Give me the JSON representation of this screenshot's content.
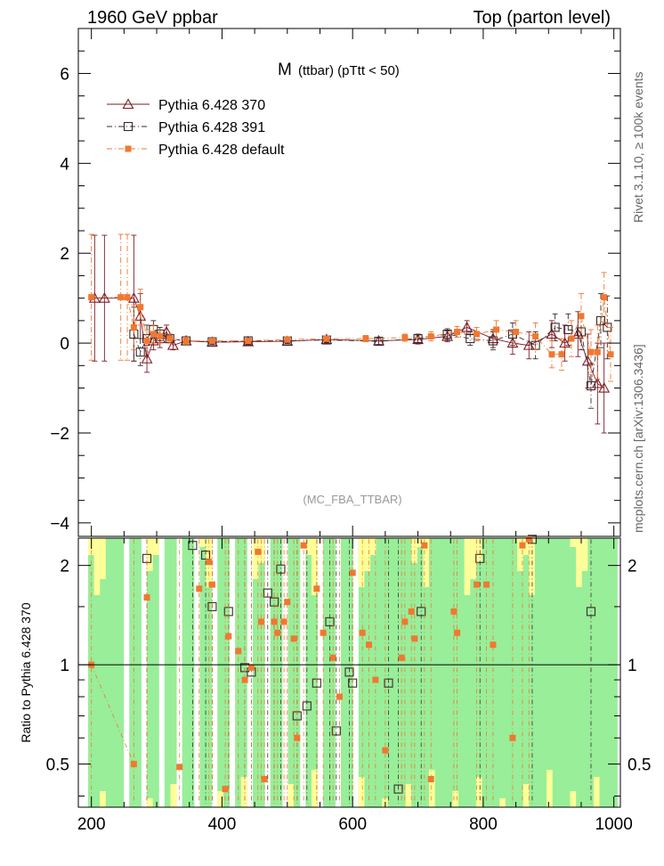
{
  "header": {
    "left": "1960 GeV ppbar",
    "right": "Top (parton level)"
  },
  "side_labels": {
    "rivet": "Rivet 3.1.10, ≥ 100k events",
    "mcplots": "mcplots.cern.ch [arXiv:1306.3436]"
  },
  "chart_data": [
    {
      "type": "line",
      "panel": "main",
      "title_main": "M",
      "title_sub": "(ttbar) (pTtt < 50)",
      "watermark": "(MC_FBA_TTBAR)",
      "xlim": [
        180,
        1010
      ],
      "ylim": [
        -4.3,
        7.0
      ],
      "yticks": [
        -4,
        -2,
        0,
        2,
        4,
        6
      ],
      "ytick_labels": [
        "−4",
        "−2",
        "0",
        "2",
        "4",
        "6"
      ],
      "legend_position": "top-left",
      "series": [
        {
          "name": "Pythia 6.428 370",
          "color": "#7f1a26",
          "marker": "open-triangle",
          "dash": "solid",
          "x": [
            205,
            220,
            265,
            275,
            285,
            295,
            305,
            315,
            325,
            345,
            385,
            440,
            500,
            560,
            640,
            700,
            745,
            775,
            815,
            845,
            870,
            905,
            925,
            945,
            960,
            975,
            985
          ],
          "y": [
            1.0,
            1.0,
            1.0,
            0.6,
            -0.35,
            0.05,
            0.1,
            0.25,
            -0.05,
            0.05,
            0.02,
            0.03,
            0.04,
            0.08,
            0.05,
            0.08,
            0.15,
            0.35,
            0.1,
            0.0,
            -0.05,
            0.2,
            0.0,
            0.2,
            -0.4,
            -0.9,
            -1.0
          ],
          "err": [
            1.4,
            1.4,
            1.4,
            0.5,
            0.3,
            0.2,
            0.2,
            0.15,
            0.1,
            0.08,
            0.05,
            0.05,
            0.05,
            0.06,
            0.08,
            0.1,
            0.12,
            0.15,
            0.2,
            0.25,
            0.3,
            0.3,
            0.4,
            0.5,
            0.6,
            0.9,
            1.0
          ]
        },
        {
          "name": "Pythia 6.428 391",
          "color": "#3a2a2a",
          "marker": "open-square",
          "dash": "dashdot",
          "x": [
            265,
            275,
            285,
            295,
            305,
            320,
            345,
            385,
            440,
            500,
            560,
            640,
            700,
            745,
            780,
            815,
            845,
            880,
            910,
            930,
            950,
            965,
            980,
            990
          ],
          "y": [
            0.2,
            -0.2,
            0.1,
            0.3,
            0.2,
            0.1,
            0.05,
            0.03,
            0.05,
            0.05,
            0.07,
            0.04,
            0.1,
            0.2,
            0.1,
            0.05,
            0.2,
            -0.05,
            0.35,
            0.3,
            0.25,
            -0.95,
            0.5,
            0.35
          ],
          "err": [
            0.6,
            0.3,
            0.3,
            0.2,
            0.15,
            0.1,
            0.08,
            0.05,
            0.05,
            0.05,
            0.06,
            0.08,
            0.1,
            0.12,
            0.15,
            0.2,
            0.25,
            0.3,
            0.3,
            0.35,
            0.4,
            0.5,
            0.6,
            0.7
          ]
        },
        {
          "name": "Pythia 6.428 default",
          "color": "#f07830",
          "marker": "filled-square",
          "dash": "dashdot",
          "x": [
            200,
            245,
            255,
            265,
            275,
            285,
            295,
            305,
            320,
            345,
            385,
            440,
            500,
            560,
            620,
            680,
            720,
            760,
            790,
            820,
            850,
            880,
            905,
            920,
            935,
            950,
            965,
            975,
            985,
            995
          ],
          "y": [
            1.02,
            1.02,
            1.02,
            0.35,
            0.8,
            0.05,
            0.2,
            0.15,
            0.1,
            0.05,
            0.05,
            0.05,
            0.08,
            0.1,
            0.1,
            0.12,
            0.15,
            0.25,
            0.2,
            0.3,
            0.25,
            0.15,
            -0.25,
            -0.25,
            0.1,
            0.6,
            -0.2,
            -0.2,
            1.02,
            -0.25
          ],
          "err": [
            1.4,
            1.4,
            1.4,
            0.5,
            0.4,
            0.25,
            0.2,
            0.15,
            0.1,
            0.08,
            0.05,
            0.05,
            0.05,
            0.06,
            0.07,
            0.08,
            0.1,
            0.12,
            0.15,
            0.2,
            0.25,
            0.3,
            0.3,
            0.35,
            0.4,
            0.5,
            0.5,
            0.6,
            0.55,
            0.6
          ]
        }
      ],
      "legend": [
        {
          "label": "Pythia 6.428 370",
          "color": "#7f1a26",
          "marker": "open-triangle"
        },
        {
          "label": "Pythia 6.428 391",
          "color": "#3a2a2a",
          "marker": "open-square"
        },
        {
          "label": "Pythia 6.428 default",
          "color": "#f07830",
          "marker": "filled-square"
        }
      ]
    },
    {
      "type": "line",
      "panel": "ratio",
      "ylabel": "Ratio to Pythia 6.428 370",
      "xlim": [
        180,
        1010
      ],
      "ylim": [
        0.37,
        2.42
      ],
      "ylog": true,
      "yticks": [
        0.5,
        1,
        2
      ],
      "ytick_labels": [
        "0.5",
        "1",
        "2"
      ],
      "xticks": [
        200,
        400,
        600,
        800,
        1000
      ],
      "xtick_labels": [
        "200",
        "400",
        "600",
        "800",
        "1000"
      ],
      "reference_line": 1,
      "band_colors": {
        "inner": "#99ee99",
        "outer": "#ffff99"
      },
      "series": [
        {
          "name": "Pythia 6.428 391",
          "color": "#3a2a2a",
          "marker": "open-square",
          "x": [
            285,
            355,
            375,
            385,
            410,
            435,
            445,
            470,
            480,
            490,
            515,
            530,
            545,
            565,
            575,
            595,
            600,
            655,
            670,
            705,
            795,
            875,
            965
          ],
          "y": [
            2.1,
            2.3,
            2.15,
            1.5,
            1.45,
            0.98,
            0.95,
            1.65,
            1.55,
            1.95,
            0.7,
            0.75,
            0.88,
            1.35,
            0.63,
            0.95,
            0.88,
            0.88,
            0.42,
            1.45,
            2.1,
            2.4,
            1.45
          ]
        },
        {
          "name": "Pythia 6.428 default",
          "color": "#f07830",
          "marker": "filled-square",
          "x": [
            200,
            265,
            285,
            335,
            365,
            380,
            385,
            405,
            410,
            425,
            435,
            445,
            455,
            460,
            465,
            480,
            485,
            495,
            500,
            510,
            515,
            525,
            545,
            555,
            570,
            580,
            600,
            615,
            625,
            635,
            650,
            675,
            680,
            690,
            695,
            710,
            720,
            755,
            760,
            790,
            805,
            815,
            845,
            860,
            870
          ],
          "y": [
            1.0,
            0.5,
            1.6,
            0.49,
            1.7,
            2.05,
            1.75,
            0.42,
            1.22,
            1.1,
            0.9,
            0.98,
            2.2,
            1.35,
            0.45,
            1.35,
            1.25,
            1.35,
            1.55,
            1.2,
            0.6,
            2.3,
            1.7,
            1.25,
            1.05,
            0.8,
            1.9,
            1.25,
            1.15,
            0.9,
            0.55,
            1.05,
            1.35,
            1.45,
            1.2,
            2.3,
            0.45,
            1.45,
            1.25,
            1.75,
            1.75,
            1.15,
            0.6,
            2.3,
            2.4
          ]
        }
      ]
    }
  ]
}
